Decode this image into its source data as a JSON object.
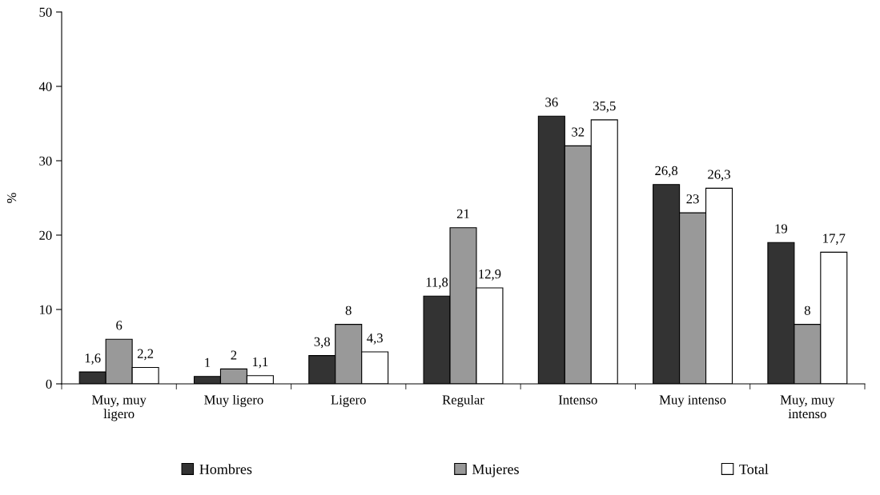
{
  "chart_data": {
    "type": "bar",
    "ylabel": "%",
    "categories": [
      "Muy, muy\nligero",
      "Muy ligero",
      "Ligero",
      "Regular",
      "Intenso",
      "Muy intenso",
      "Muy, muy\nintenso"
    ],
    "series": [
      {
        "name": "Hombres",
        "color": "#333333",
        "values": [
          1.6,
          1,
          3.8,
          11.8,
          36,
          26.8,
          19
        ],
        "value_labels": [
          "1,6",
          "1",
          "3,8",
          "11,8",
          "36",
          "26,8",
          "19"
        ]
      },
      {
        "name": "Mujeres",
        "color": "#999999",
        "values": [
          6,
          2,
          8,
          21,
          32,
          23,
          8
        ],
        "value_labels": [
          "6",
          "2",
          "8",
          "21",
          "32",
          "23",
          "8"
        ]
      },
      {
        "name": "Total",
        "color": "#ffffff",
        "values": [
          2.2,
          1.1,
          4.3,
          12.9,
          35.5,
          26.3,
          17.7
        ],
        "value_labels": [
          "2,2",
          "1,1",
          "4,3",
          "12,9",
          "35,5",
          "26,3",
          "17,7"
        ]
      }
    ],
    "ylim": [
      0,
      50
    ],
    "yticks": [
      0,
      10,
      20,
      30,
      40,
      50
    ],
    "grid": false,
    "legend": "bottom"
  }
}
